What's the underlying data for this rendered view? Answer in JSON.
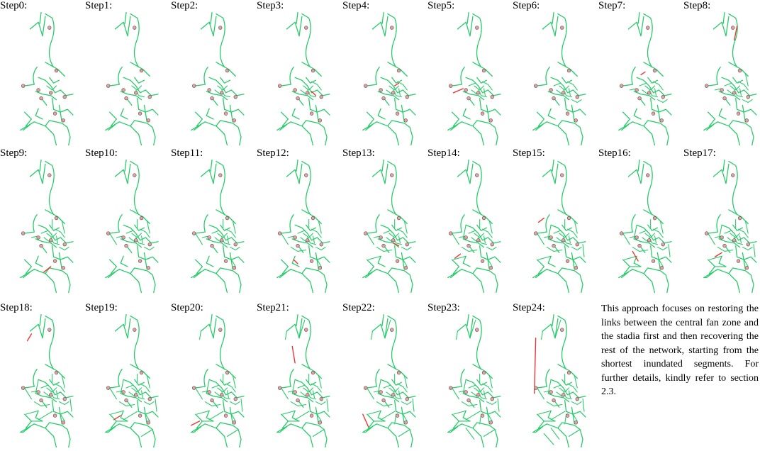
{
  "figure": {
    "step_labels": [
      "Step0:",
      "Step1:",
      "Step2:",
      "Step3:",
      "Step4:",
      "Step5:",
      "Step6:",
      "Step7:",
      "Step8:",
      "Step9:",
      "Step10:",
      "Step11:",
      "Step12:",
      "Step13:",
      "Step14:",
      "Step15:",
      "Step16:",
      "Step17:",
      "Step18:",
      "Step19:",
      "Step20:",
      "Step21:",
      "Step22:",
      "Step23:",
      "Step24:"
    ],
    "caption": "This approach focuses on restoring the links between the central fan zone and the stadia first and then recovering the rest of the network, starting from the shortest inundated segments. For further details, kindly refer to section 2.3."
  },
  "colors": {
    "road": "#22cc66",
    "restored_link": "#ee3333",
    "venue_fill": "#e8a0a0",
    "venue_stroke": "#555555"
  }
}
